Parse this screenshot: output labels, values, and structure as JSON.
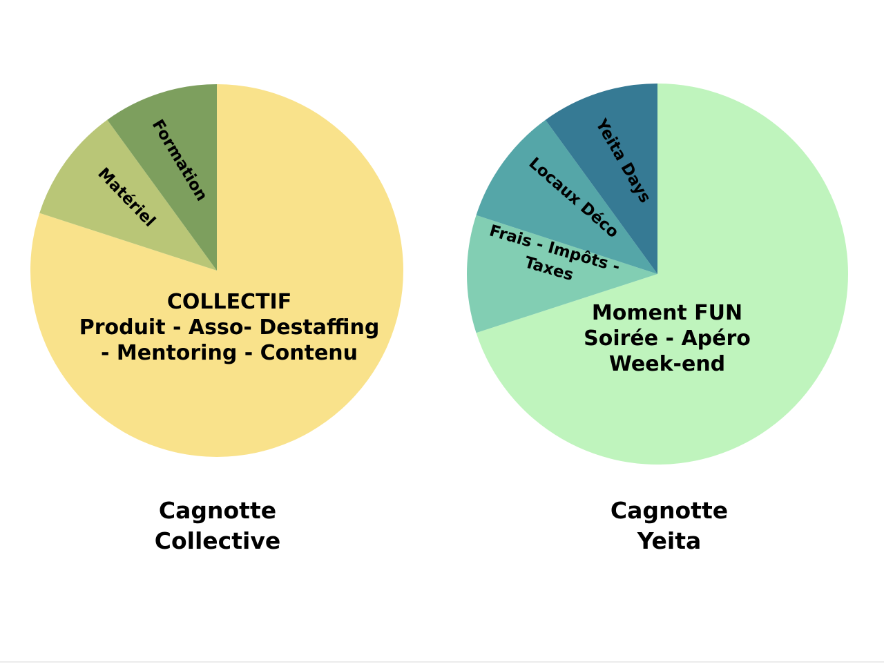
{
  "chart_data": [
    {
      "type": "pie",
      "title_lines": [
        "Cagnotte",
        "Collective"
      ],
      "slices": [
        {
          "key": "collectif",
          "label_lines": [
            "COLLECTIF",
            "Produit - Asso- Destaffing",
            "- Mentoring - Contenu"
          ],
          "value": 80,
          "color": "#f9e28b"
        },
        {
          "key": "materiel",
          "label_lines": [
            "Matériel"
          ],
          "value": 10,
          "color": "#b9c677"
        },
        {
          "key": "formation",
          "label_lines": [
            "Formation"
          ],
          "value": 10,
          "color": "#7d9f5e"
        }
      ]
    },
    {
      "type": "pie",
      "title_lines": [
        "Cagnotte",
        "Yeita"
      ],
      "slices": [
        {
          "key": "moment-fun",
          "label_lines": [
            "Moment FUN",
            "Soirée - Apéro",
            "Week-end"
          ],
          "value": 70,
          "color": "#bff4bd"
        },
        {
          "key": "frais",
          "label_lines": [
            "Frais - Impôts -",
            "Taxes"
          ],
          "value": 10,
          "color": "#82ceb3"
        },
        {
          "key": "locaux",
          "label_lines": [
            "Locaux Déco"
          ],
          "value": 10,
          "color": "#55a6a8"
        },
        {
          "key": "yeita-days",
          "label_lines": [
            "Yeita Days"
          ],
          "value": 10,
          "color": "#367a94"
        }
      ]
    }
  ]
}
